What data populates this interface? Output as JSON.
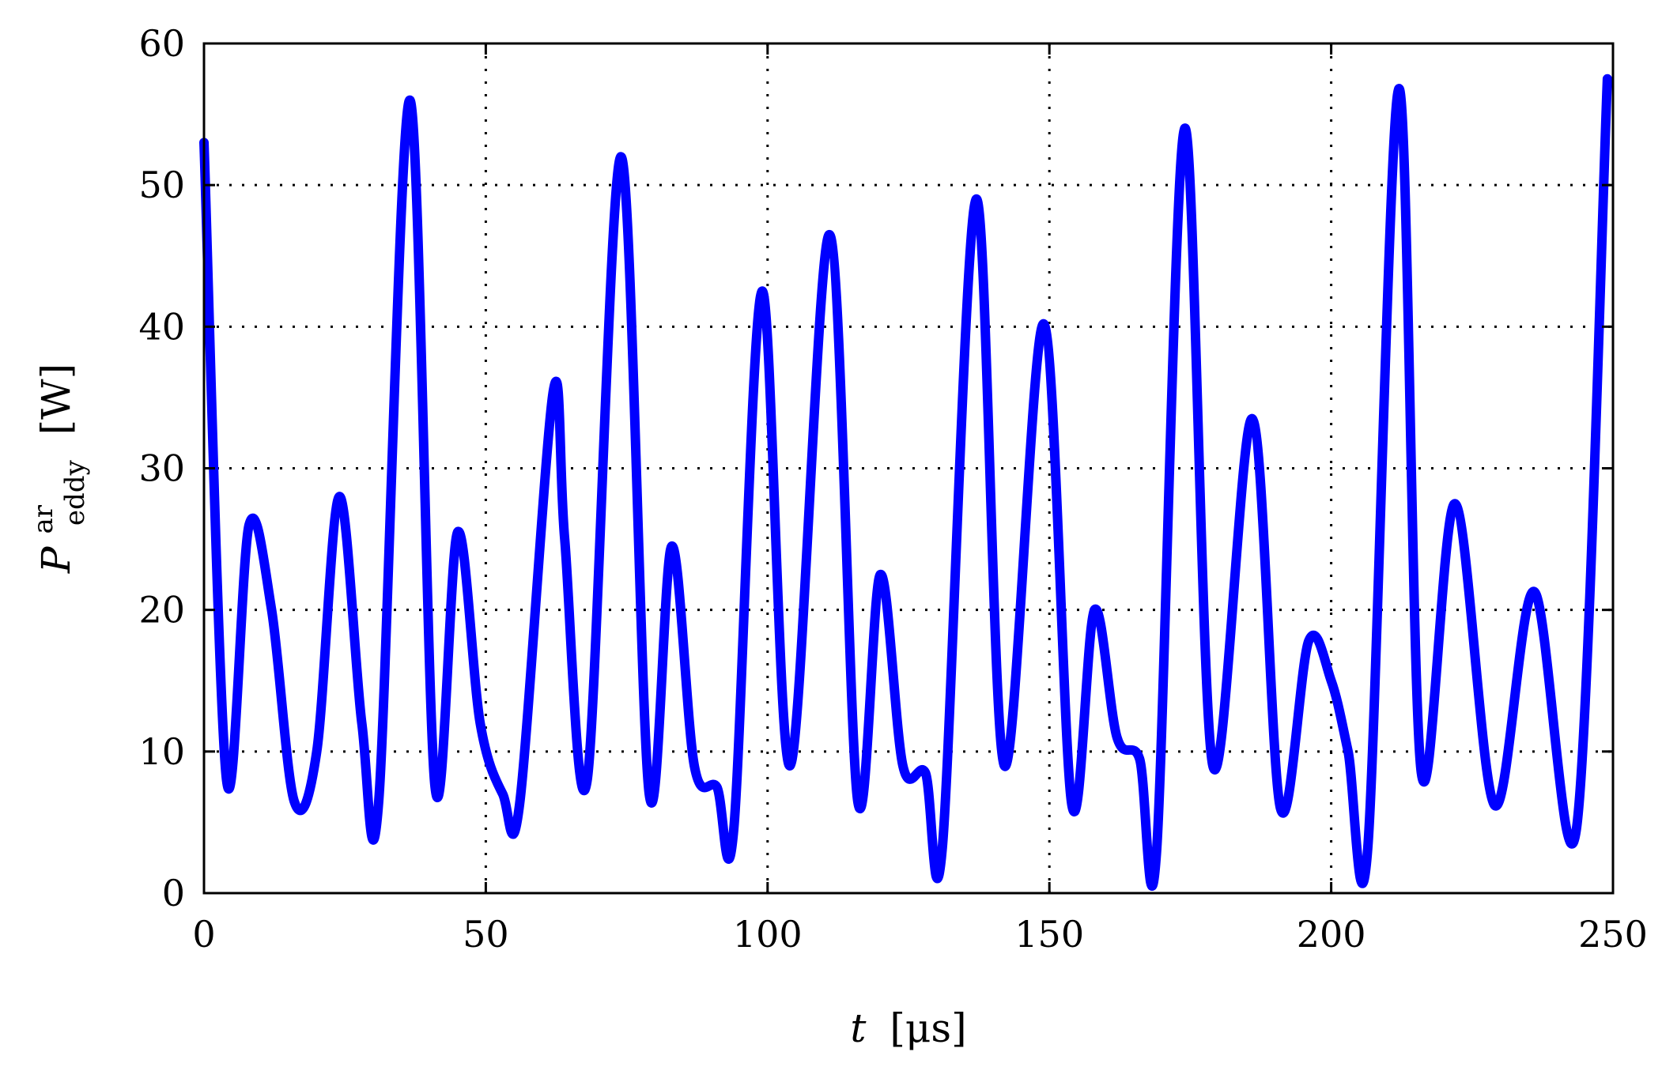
{
  "chart_data": {
    "type": "line",
    "title": "",
    "xlabel": {
      "var": "t",
      "unit": "[μs]"
    },
    "ylabel": {
      "var": "P",
      "sup": "ar",
      "sub": "eddy",
      "unit": "[W]"
    },
    "xlim": [
      0,
      250
    ],
    "ylim": [
      0,
      60
    ],
    "xticks": [
      0,
      50,
      100,
      150,
      200,
      250
    ],
    "yticks": [
      0,
      10,
      20,
      30,
      40,
      50,
      60
    ],
    "grid": true,
    "line_color": "#0000ff",
    "series": [
      {
        "x": [
          0,
          4,
          8,
          12,
          16,
          20,
          24,
          28,
          31,
          36.5,
          41,
          45,
          49,
          53,
          56,
          62,
          64,
          68,
          74,
          79,
          83,
          87,
          91,
          94,
          99,
          104,
          111,
          116,
          120,
          124,
          128,
          131,
          137,
          142,
          149,
          154,
          158,
          162,
          166,
          169,
          174,
          179,
          186,
          191,
          196,
          200,
          203,
          206.5,
          212,
          216,
          222,
          229,
          236,
          243.5,
          249
        ],
        "y": [
          53,
          8,
          26,
          20,
          6.5,
          10,
          28,
          12,
          6.5,
          56,
          7.5,
          25.5,
          12,
          7,
          6.3,
          35.5,
          25,
          8,
          52,
          7,
          24.5,
          9,
          7.5,
          4.5,
          42.5,
          9,
          46.5,
          6.5,
          22.5,
          9,
          8.5,
          3.2,
          49,
          9,
          40.2,
          6.2,
          20,
          11,
          9.5,
          2.8,
          54,
          9,
          33.5,
          6,
          17.8,
          15,
          10,
          3.2,
          56.8,
          8.5,
          27.5,
          6.2,
          21.3,
          4.5,
          57.5
        ]
      }
    ]
  }
}
